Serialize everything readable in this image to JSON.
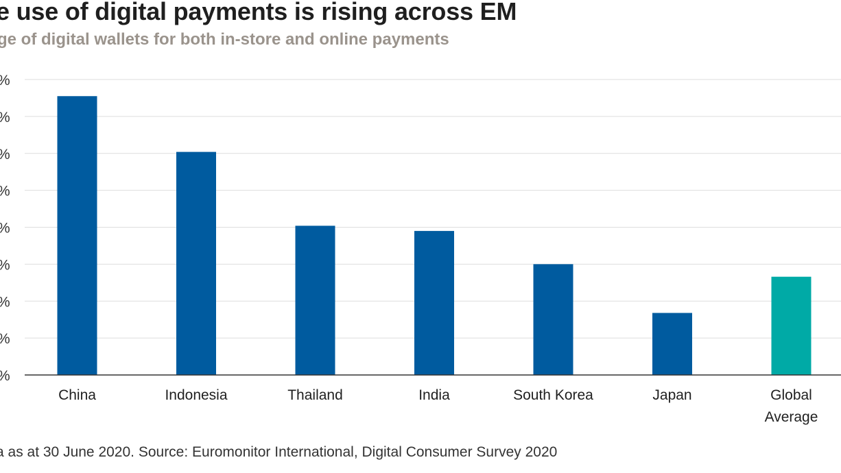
{
  "header": {
    "title": "e use of digital payments is rising across EM",
    "subtitle": "ge of digital wallets for both in-store and online payments"
  },
  "footer": {
    "source": "a as at 30 June 2020. Source: Euromonitor International, Digital Consumer Survey 2020"
  },
  "chart_data": {
    "type": "bar",
    "categories": [
      "China",
      "Indonesia",
      "Thailand",
      "India",
      "South Korea",
      "Japan",
      "Global Average"
    ],
    "category_lines": [
      [
        "China"
      ],
      [
        "Indonesia"
      ],
      [
        "Thailand"
      ],
      [
        "India"
      ],
      [
        "South Korea"
      ],
      [
        "Japan"
      ],
      [
        "Global",
        "Average"
      ]
    ],
    "values": [
      75.5,
      60.4,
      40.4,
      39.0,
      30.0,
      16.8,
      26.6
    ],
    "bar_colors": [
      "#005b9f",
      "#005b9f",
      "#005b9f",
      "#005b9f",
      "#005b9f",
      "#005b9f",
      "#00aaa6"
    ],
    "ylim": [
      0,
      80
    ],
    "yticks": [
      0,
      10,
      20,
      30,
      40,
      50,
      60,
      70,
      80
    ],
    "ytick_labels": [
      "%",
      "%",
      "%",
      "%",
      "%",
      "%",
      "%",
      "%",
      "%"
    ],
    "grid": true,
    "grid_color": "#dddddd",
    "axis_color": "#333333"
  }
}
